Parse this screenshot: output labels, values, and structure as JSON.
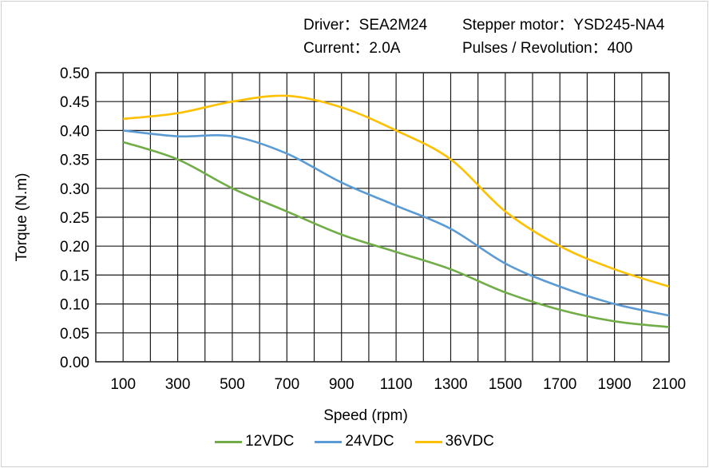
{
  "header": {
    "driver": "Driver：SEA2M24",
    "motor": "Stepper motor：YSD245-NA4",
    "current": "Current：2.0A",
    "pulses": "Pulses / Revolution：400"
  },
  "chart_data": {
    "type": "line",
    "xlabel": "Speed  (rpm)",
    "ylabel": "Torque (N.m)",
    "xlim": [
      0,
      2100
    ],
    "ylim": [
      0,
      0.5
    ],
    "x_ticks": [
      100,
      300,
      500,
      700,
      900,
      1100,
      1300,
      1500,
      1700,
      1900,
      2100
    ],
    "y_ticks": [
      "0.00",
      "0.05",
      "0.10",
      "0.15",
      "0.20",
      "0.25",
      "0.30",
      "0.35",
      "0.40",
      "0.45",
      "0.50"
    ],
    "grid": true,
    "legend_position": "bottom",
    "x": [
      100,
      300,
      500,
      700,
      900,
      1100,
      1300,
      1500,
      1700,
      1900,
      2100
    ],
    "series": [
      {
        "name": "12VDC",
        "color": "#70AD47",
        "values": [
          0.38,
          0.35,
          0.3,
          0.26,
          0.22,
          0.19,
          0.16,
          0.12,
          0.09,
          0.07,
          0.06
        ]
      },
      {
        "name": "24VDC",
        "color": "#5B9BD5",
        "values": [
          0.4,
          0.39,
          0.39,
          0.36,
          0.31,
          0.27,
          0.23,
          0.17,
          0.13,
          0.1,
          0.08
        ]
      },
      {
        "name": "36VDC",
        "color": "#FFC000",
        "values": [
          0.42,
          0.43,
          0.45,
          0.46,
          0.44,
          0.4,
          0.35,
          0.26,
          0.2,
          0.16,
          0.13
        ]
      }
    ]
  }
}
